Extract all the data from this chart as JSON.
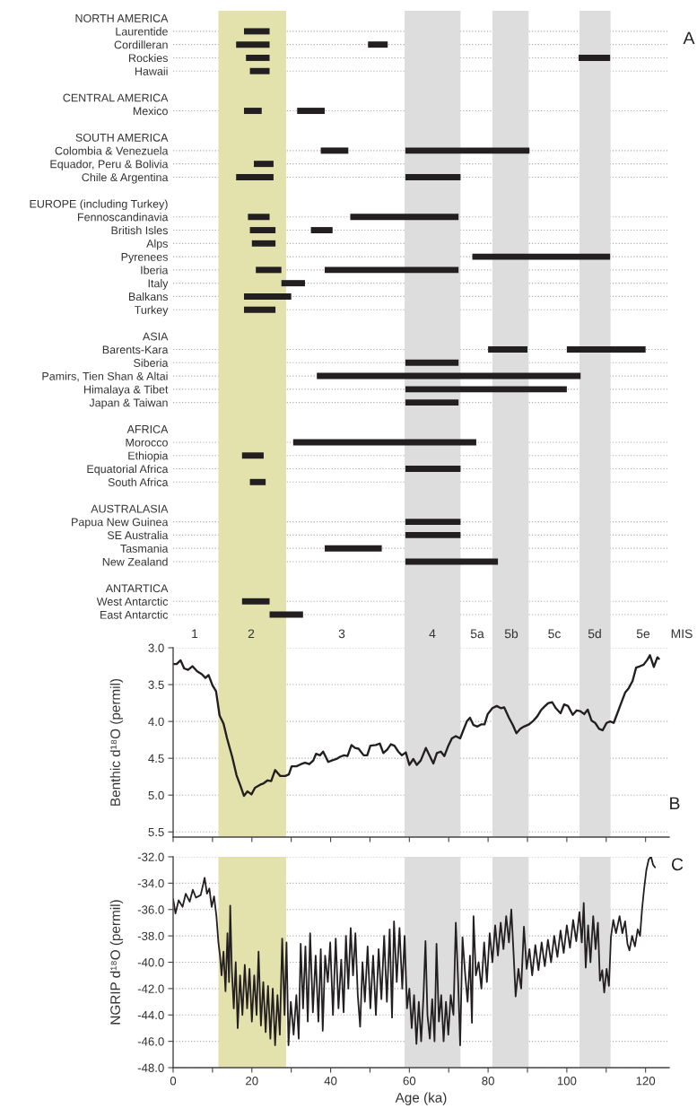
{
  "chart_data": [
    {
      "type": "bar",
      "orientation": "horizontal",
      "categories": [
        "NORTH AMERICA",
        "Laurentide",
        "Cordilleran",
        "Rockies",
        "Hawaii",
        "CENTRAL AMERICA",
        "Mexico",
        "SOUTH AMERICA",
        "Colombia & Venezuela",
        "Equador, Peru & Bolivia",
        "Chile & Argentina",
        "EUROPE (including Turkey)",
        "Fennoscandinavia",
        "British Isles",
        "Alps",
        "Pyrenees",
        "Iberia",
        "Italy",
        "Balkans",
        "Turkey",
        "ASIA",
        "Barents-Kara",
        "Siberia",
        "Pamirs, Tien Shan & Altai",
        "Himalaya & Tibet",
        "Japan & Taiwan",
        "AFRICA",
        "Morocco",
        "Ethiopia",
        "Equatorial Africa",
        "South Africa",
        "AUSTRALASIA",
        "Papua New Guinea",
        "SE Australia",
        "Tasmania",
        "New Zealand",
        "ANTARTICA",
        "West Antarctic",
        "East Antarctic"
      ],
      "series": [
        {
          "color": "#231f20",
          "base": [
            null,
            18,
            16,
            18.5,
            19.5,
            null,
            18,
            null,
            37.5,
            20.5,
            16,
            null,
            19,
            19.5,
            20,
            76,
            21,
            27.5,
            18,
            18,
            null,
            80,
            59,
            36.5,
            59,
            59,
            null,
            30.5,
            17.5,
            59,
            19.5,
            null,
            59,
            59,
            38.5,
            59,
            null,
            17.5,
            24.5
          ],
          "values": [
            null,
            6.5,
            8.5,
            6,
            5,
            null,
            4.5,
            null,
            7,
            5,
            9.5,
            null,
            5.5,
            6.5,
            6,
            35,
            6.5,
            6,
            12,
            8,
            null,
            10,
            13.5,
            67,
            41,
            13.5,
            null,
            46.5,
            5.5,
            14,
            4,
            null,
            14,
            14,
            14.5,
            23.5,
            null,
            7,
            8.5
          ]
        },
        {
          "color": "#231f20",
          "base": [
            null,
            null,
            49.5,
            103,
            null,
            null,
            31.5,
            null,
            59,
            null,
            59,
            null,
            45,
            35,
            null,
            null,
            38.5,
            null,
            null,
            null,
            null,
            100,
            null,
            null,
            null,
            null,
            null,
            null,
            null,
            null,
            null,
            null,
            null,
            null,
            null,
            null,
            null,
            null,
            null
          ],
          "values": [
            null,
            null,
            5,
            8,
            null,
            null,
            7,
            null,
            31.5,
            null,
            14,
            null,
            27.5,
            5.5,
            null,
            null,
            34,
            null,
            null,
            null,
            null,
            20,
            null,
            null,
            null,
            null,
            null,
            null,
            null,
            null,
            null,
            null,
            null,
            null,
            null,
            null,
            null,
            null,
            null
          ]
        }
      ],
      "xlim": [
        0,
        126
      ],
      "tick_labels": "y",
      "grid": "y",
      "bands": [
        {
          "axis": "x",
          "from": 11.5,
          "to": 28.7,
          "color": "#e3e2ad"
        },
        {
          "axis": "x",
          "from": 58.8,
          "to": 73,
          "color": "#dddddd"
        },
        {
          "axis": "x",
          "from": 81.1,
          "to": 90.3,
          "color": "#dddddd"
        },
        {
          "axis": "x",
          "from": 103.2,
          "to": 111.1,
          "color": "#dddddd"
        }
      ],
      "annotations": [
        "A"
      ]
    },
    {
      "type": "line",
      "x": [
        0,
        0.9,
        1.9,
        2.8,
        3.8,
        4.9,
        6.1,
        7.3,
        8.2,
        9,
        10,
        10.9,
        11.8,
        12.8,
        13.7,
        15,
        16.1,
        17,
        18,
        18.9,
        19.9,
        20.8,
        22.1,
        23,
        24,
        24.9,
        25.9,
        27.2,
        28.5,
        29.4,
        30.1,
        31.3,
        32.5,
        33.5,
        34.6,
        35.6,
        36.3,
        37.3,
        38.1,
        39.4,
        40.3,
        41.5,
        42.4,
        43.4,
        44.3,
        45.3,
        46.2,
        47.1,
        48.4,
        49.3,
        50.1,
        51.5,
        52.5,
        53.4,
        54.4,
        55.3,
        56.2,
        57.2,
        58.1,
        59.1,
        60,
        61,
        61.9,
        62.9,
        64.2,
        65.2,
        66.1,
        67,
        68,
        68.9,
        69.9,
        70.8,
        71.8,
        72.9,
        73.7,
        74.6,
        75.4,
        76.3,
        77.3,
        78.2,
        79.1,
        79.9,
        81.1,
        82.2,
        83.2,
        84.1,
        85.3,
        86.3,
        87.2,
        88.2,
        89.1,
        90.4,
        91.5,
        92.5,
        93.4,
        94.3,
        95.3,
        96.3,
        97.2,
        98.4,
        99.3,
        100.3,
        101.5,
        102.5,
        103.4,
        104.4,
        105.3,
        106.3,
        107.2,
        108.2,
        109.1,
        110.1,
        111,
        111.9,
        112.9,
        113.8,
        114.8,
        115.7,
        116.7,
        117.6,
        118.6,
        119.5,
        120.5,
        121.1,
        122.1,
        123,
        123.4
      ],
      "series": [
        {
          "color": "#231f20",
          "values": [
            3.22,
            3.22,
            3.17,
            3.28,
            3.3,
            3.25,
            3.32,
            3.36,
            3.41,
            3.37,
            3.51,
            3.59,
            3.92,
            4.03,
            4.23,
            4.48,
            4.73,
            4.86,
            5.01,
            4.95,
            4.99,
            4.9,
            4.86,
            4.84,
            4.8,
            4.81,
            4.66,
            4.74,
            4.74,
            4.72,
            4.61,
            4.61,
            4.58,
            4.56,
            4.58,
            4.53,
            4.44,
            4.46,
            4.41,
            4.55,
            4.53,
            4.51,
            4.48,
            4.46,
            4.47,
            4.32,
            4.36,
            4.37,
            4.46,
            4.46,
            4.33,
            4.32,
            4.3,
            4.43,
            4.38,
            4.31,
            4.33,
            4.41,
            4.46,
            4.42,
            4.59,
            4.51,
            4.59,
            4.53,
            4.36,
            4.47,
            4.57,
            4.43,
            4.41,
            4.47,
            4.33,
            4.23,
            4.2,
            4.23,
            4.12,
            4.0,
            3.95,
            4.05,
            4.07,
            4.04,
            4.04,
            3.9,
            3.82,
            3.79,
            3.82,
            3.81,
            3.95,
            4.05,
            4.16,
            4.1,
            4.07,
            4.04,
            3.99,
            3.93,
            3.85,
            3.8,
            3.75,
            3.74,
            3.82,
            3.89,
            3.77,
            3.79,
            3.91,
            3.85,
            3.86,
            3.9,
            3.84,
            3.99,
            4.02,
            4.1,
            4.12,
            4.02,
            4.0,
            4.02,
            3.88,
            3.75,
            3.61,
            3.55,
            3.45,
            3.27,
            3.25,
            3.23,
            3.16,
            3.1,
            3.26,
            3.13,
            3.15
          ]
        }
      ],
      "ylabel": "Benthic d¹⁸O (permil)",
      "xlim": [
        0,
        126
      ],
      "ylim": [
        5.57,
        3.0
      ],
      "xticks": [
        {
          "value": 0,
          "label": null
        },
        {
          "value": 10,
          "label": null
        },
        {
          "value": 20,
          "label": null
        },
        {
          "value": 30,
          "label": null
        },
        {
          "value": 40,
          "label": null
        },
        {
          "value": 50,
          "label": null
        },
        {
          "value": 60,
          "label": null
        },
        {
          "value": 70,
          "label": null
        },
        {
          "value": 80,
          "label": null
        },
        {
          "value": 90,
          "label": null
        },
        {
          "value": 100,
          "label": null
        },
        {
          "value": 110,
          "label": null
        },
        {
          "value": 120,
          "label": null
        }
      ],
      "yticks": [
        {
          "value": 3.0,
          "label": "3.0"
        },
        {
          "value": 3.5,
          "label": "3.5"
        },
        {
          "value": 4.0,
          "label": "4.0"
        },
        {
          "value": 4.5,
          "label": "4.5"
        },
        {
          "value": 5.0,
          "label": "5.0"
        },
        {
          "value": 5.5,
          "label": "5.5"
        }
      ],
      "tick_labels": "y",
      "grid": "y",
      "bands": [
        {
          "axis": "x",
          "from": 11.5,
          "to": 28.7,
          "color": "#e3e2ad"
        },
        {
          "axis": "x",
          "from": 58.8,
          "to": 73,
          "color": "#dddddd"
        },
        {
          "axis": "x",
          "from": 81.1,
          "to": 90.3,
          "color": "#dddddd"
        },
        {
          "axis": "x",
          "from": 103.2,
          "to": 111.1,
          "color": "#dddddd"
        }
      ],
      "annotations": [
        "1",
        "2",
        "3",
        "4",
        "5a",
        "5b",
        "5c",
        "5d",
        "5e",
        "MIS",
        "B"
      ]
    },
    {
      "type": "line",
      "x": [
        0,
        0.6,
        1.4,
        2.4,
        3.2,
        4.2,
        5,
        5.8,
        7,
        8,
        8.6,
        9.2,
        9.8,
        10.4,
        11,
        11.5,
        11.9,
        12.3,
        12.8,
        13.3,
        13.8,
        14.2,
        14.5,
        14.9,
        15.4,
        15.9,
        16.4,
        17,
        17.6,
        18.2,
        18.8,
        19.4,
        20,
        20.6,
        21.2,
        21.7,
        22.3,
        22.9,
        23.5,
        24.1,
        24.7,
        25.3,
        25.9,
        26.5,
        27.1,
        27.7,
        28.3,
        28.8,
        29.3,
        29.9,
        30.6,
        31.3,
        31.9,
        32.4,
        33,
        33.6,
        34.2,
        34.8,
        35.5,
        36.2,
        36.9,
        37.5,
        38,
        38.6,
        39.3,
        39.9,
        40.6,
        41.3,
        42,
        42.7,
        43.3,
        43.9,
        44.5,
        45.1,
        45.7,
        46.3,
        46.9,
        47.5,
        48.1,
        48.7,
        49.4,
        50.1,
        50.8,
        51.5,
        52.2,
        52.9,
        53.6,
        54.3,
        55,
        55.6,
        56.1,
        56.8,
        57.5,
        58.2,
        58.8,
        59.4,
        60,
        60.6,
        61.2,
        61.8,
        62.4,
        63,
        63.6,
        64.1,
        64.6,
        65.2,
        65.8,
        66.4,
        66.9,
        67.5,
        68.1,
        68.7,
        69.3,
        69.9,
        70.5,
        71.2,
        71.8,
        72.4,
        72.9,
        73.5,
        74.2,
        74.8,
        75.4,
        75.9,
        76.3,
        76.9,
        77.6,
        78.3,
        79,
        79.7,
        80.4,
        81.1,
        81.8,
        82.5,
        83.2,
        83.9,
        84.6,
        85.3,
        85.9,
        86.5,
        87,
        87.7,
        88.4,
        89.1,
        89.8,
        90.5,
        91.2,
        92,
        92.8,
        93.6,
        94.4,
        95.2,
        96,
        96.8,
        97.6,
        98.4,
        99.2,
        100,
        100.8,
        101.6,
        102.4,
        103.2,
        103.8,
        104.3,
        104.8,
        105.4,
        106,
        106.7,
        107.3,
        107.9,
        108.4,
        109,
        109.5,
        110.1,
        110.7,
        111.2,
        111.8,
        112.5,
        113.4,
        114.1,
        114.8,
        115.4,
        115.9,
        116.6,
        117.3,
        118,
        118.6,
        119.1,
        119.6,
        120.2,
        120.8,
        121.4,
        121.9,
        122.4
      ],
      "series": [
        {
          "color": "#231f20",
          "values": [
            -35.2,
            -36.3,
            -35.3,
            -35.8,
            -34.8,
            -35.4,
            -34.5,
            -35.1,
            -34.9,
            -33.6,
            -34.8,
            -34.4,
            -35.8,
            -35,
            -36.5,
            -38.5,
            -39.5,
            -41,
            -39.2,
            -42.2,
            -37.8,
            -41.5,
            -35.7,
            -40.5,
            -43.5,
            -40,
            -45,
            -41,
            -44,
            -40.2,
            -43.5,
            -40.5,
            -44.5,
            -41,
            -44,
            -39.2,
            -44.8,
            -41.5,
            -45.3,
            -41.8,
            -45.8,
            -42,
            -46.3,
            -42.5,
            -45.5,
            -38.2,
            -44,
            -38.5,
            -46.3,
            -43,
            -45.5,
            -42.5,
            -45.8,
            -38.6,
            -43.5,
            -38.8,
            -44.5,
            -37.8,
            -43.8,
            -39.5,
            -44.5,
            -39,
            -45.2,
            -39.5,
            -41.5,
            -38.5,
            -44,
            -38.2,
            -43.5,
            -39.8,
            -43.8,
            -38,
            -42,
            -37.4,
            -41,
            -37.8,
            -42.5,
            -44.9,
            -40,
            -43,
            -38.8,
            -43.5,
            -39.5,
            -44,
            -39,
            -42.8,
            -38,
            -43,
            -37.5,
            -44.2,
            -36.9,
            -41.5,
            -37.4,
            -42,
            -38,
            -43.5,
            -42,
            -45,
            -42.5,
            -46.2,
            -43,
            -46,
            -42.5,
            -38.4,
            -44,
            -45.8,
            -42.8,
            -46,
            -38.6,
            -44.5,
            -42.5,
            -46,
            -43,
            -45.5,
            -42.5,
            -44,
            -37,
            -41.5,
            -46.3,
            -38.1,
            -41,
            -43,
            -39.5,
            -44.6,
            -36.5,
            -41,
            -40,
            -42,
            -38.5,
            -41.5,
            -37.8,
            -40,
            -37.2,
            -39.5,
            -37,
            -39,
            -36.5,
            -38.5,
            -36,
            -39.5,
            -42.6,
            -40.5,
            -42,
            -37.3,
            -40.5,
            -39,
            -41,
            -38.7,
            -40.6,
            -38.5,
            -40.3,
            -38.3,
            -40,
            -38,
            -39.6,
            -37.6,
            -39.3,
            -37.2,
            -38.9,
            -36.8,
            -38.4,
            -36.2,
            -38.5,
            -35.5,
            -40.4,
            -37.2,
            -40,
            -36.5,
            -39,
            -37,
            -41.4,
            -40.6,
            -42.3,
            -40.5,
            -41.8,
            -38.1,
            -36.8,
            -37.8,
            -36.5,
            -37.8,
            -36.9,
            -38.6,
            -39.1,
            -38,
            -38.8,
            -37.5,
            -38,
            -36,
            -34.5,
            -33,
            -32.2,
            -32,
            -32.6,
            -32.8
          ]
        }
      ],
      "xlabel": "Age (ka)",
      "ylabel": "NGRIP d¹⁸O (permil)",
      "xlim": [
        0,
        126
      ],
      "ylim": [
        -48,
        -32
      ],
      "xticks": [
        0,
        {
          "value": 10,
          "label": null
        },
        20,
        {
          "value": 30,
          "label": null
        },
        40,
        {
          "value": 50,
          "label": null
        },
        60,
        {
          "value": 70,
          "label": null
        },
        80,
        {
          "value": 90,
          "label": null
        },
        100,
        {
          "value": 110,
          "label": null
        },
        120
      ],
      "yticks": [
        {
          "value": -48,
          "label": "-48.0"
        },
        {
          "value": -46,
          "label": "-46.0"
        },
        {
          "value": -44,
          "label": "-44.0"
        },
        {
          "value": -42,
          "label": "-42.0"
        },
        {
          "value": -40,
          "label": "-40.0"
        },
        {
          "value": -38,
          "label": "-38.0"
        },
        {
          "value": -36,
          "label": "-36.0"
        },
        {
          "value": -34,
          "label": "-34.0"
        },
        {
          "value": -32,
          "label": "-32.0"
        }
      ],
      "grid": "y",
      "bands": [
        {
          "axis": "x",
          "from": 11.5,
          "to": 28.7,
          "color": "#e3e2ad"
        },
        {
          "axis": "x",
          "from": 58.8,
          "to": 73,
          "color": "#dddddd"
        },
        {
          "axis": "x",
          "from": 81.1,
          "to": 90.3,
          "color": "#dddddd"
        },
        {
          "axis": "x",
          "from": 103.2,
          "to": 111.1,
          "color": "#dddddd"
        }
      ],
      "annotations": [
        "C"
      ]
    }
  ]
}
